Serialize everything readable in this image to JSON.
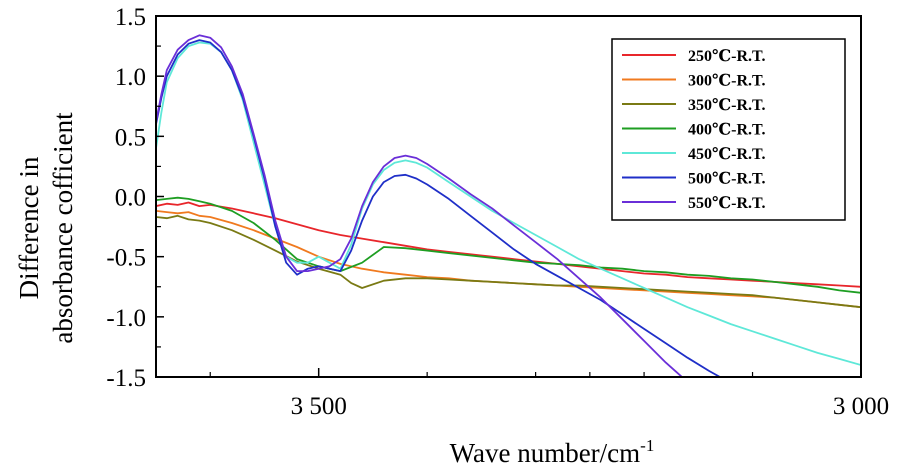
{
  "chart_data": {
    "type": "line",
    "xlabel": "Wave number/cm",
    "xlabel_sup": "-1",
    "ylabel_line1": "Difference in",
    "ylabel_line2": "absorbance cofficient",
    "xlim": [
      3650,
      3000
    ],
    "ylim": [
      -1.5,
      1.5
    ],
    "x_ticks": [
      3500,
      3000
    ],
    "x_tick_labels": [
      "3 500",
      "3 000"
    ],
    "x_minor_ticks": [
      3600,
      3400,
      3300,
      3250,
      3200,
      3100
    ],
    "y_ticks": [
      1.5,
      1.0,
      0.5,
      0.0,
      -0.5,
      -1.0,
      -1.5
    ],
    "y_tick_labels": [
      "1.5",
      "1.0",
      "0.5",
      "0.0",
      "-0.5",
      "-1.0",
      "-1.5"
    ],
    "grid": false,
    "legend_position": "top-right",
    "series": [
      {
        "name": "250℃-R.T.",
        "color": "#e8262b",
        "x": [
          3650,
          3640,
          3630,
          3620,
          3610,
          3600,
          3580,
          3560,
          3540,
          3520,
          3500,
          3480,
          3460,
          3440,
          3420,
          3400,
          3380,
          3360,
          3340,
          3320,
          3300,
          3280,
          3260,
          3240,
          3220,
          3200,
          3180,
          3160,
          3140,
          3120,
          3100,
          3080,
          3060,
          3040,
          3020,
          3000
        ],
        "y": [
          -0.08,
          -0.06,
          -0.07,
          -0.05,
          -0.08,
          -0.07,
          -0.1,
          -0.14,
          -0.18,
          -0.23,
          -0.28,
          -0.32,
          -0.35,
          -0.38,
          -0.41,
          -0.44,
          -0.46,
          -0.48,
          -0.5,
          -0.52,
          -0.54,
          -0.56,
          -0.58,
          -0.6,
          -0.62,
          -0.64,
          -0.65,
          -0.67,
          -0.68,
          -0.69,
          -0.7,
          -0.71,
          -0.72,
          -0.73,
          -0.74,
          -0.75
        ]
      },
      {
        "name": "300℃-R.T.",
        "color": "#f07a1f",
        "x": [
          3650,
          3640,
          3630,
          3620,
          3610,
          3600,
          3580,
          3560,
          3540,
          3520,
          3500,
          3480,
          3460,
          3440,
          3420,
          3400,
          3380,
          3360,
          3340,
          3320,
          3300,
          3280,
          3260,
          3240,
          3220,
          3200,
          3180,
          3160,
          3140,
          3120,
          3100,
          3080,
          3060,
          3040,
          3020,
          3000
        ],
        "y": [
          -0.12,
          -0.13,
          -0.14,
          -0.13,
          -0.16,
          -0.17,
          -0.22,
          -0.28,
          -0.35,
          -0.42,
          -0.5,
          -0.56,
          -0.6,
          -0.63,
          -0.65,
          -0.67,
          -0.68,
          -0.7,
          -0.71,
          -0.72,
          -0.73,
          -0.74,
          -0.75,
          -0.76,
          -0.77,
          -0.78,
          -0.79,
          -0.8,
          -0.81,
          -0.82,
          -0.83,
          -0.84,
          -0.86,
          -0.88,
          -0.9,
          -0.92
        ]
      },
      {
        "name": "350℃-R.T.",
        "color": "#7a7a14",
        "x": [
          3650,
          3640,
          3630,
          3620,
          3610,
          3600,
          3580,
          3560,
          3540,
          3520,
          3500,
          3480,
          3470,
          3460,
          3440,
          3420,
          3400,
          3380,
          3360,
          3340,
          3320,
          3300,
          3280,
          3260,
          3240,
          3220,
          3200,
          3180,
          3160,
          3140,
          3120,
          3100,
          3080,
          3060,
          3040,
          3020,
          3000
        ],
        "y": [
          -0.17,
          -0.18,
          -0.16,
          -0.19,
          -0.2,
          -0.22,
          -0.28,
          -0.36,
          -0.45,
          -0.54,
          -0.6,
          -0.65,
          -0.72,
          -0.76,
          -0.7,
          -0.68,
          -0.68,
          -0.69,
          -0.7,
          -0.71,
          -0.72,
          -0.73,
          -0.74,
          -0.74,
          -0.75,
          -0.76,
          -0.77,
          -0.78,
          -0.79,
          -0.8,
          -0.81,
          -0.82,
          -0.84,
          -0.86,
          -0.88,
          -0.9,
          -0.92
        ]
      },
      {
        "name": "400℃-R.T.",
        "color": "#1e9e22",
        "x": [
          3650,
          3640,
          3630,
          3620,
          3610,
          3600,
          3580,
          3560,
          3540,
          3520,
          3500,
          3490,
          3480,
          3460,
          3440,
          3420,
          3400,
          3380,
          3360,
          3340,
          3320,
          3300,
          3280,
          3260,
          3240,
          3220,
          3200,
          3180,
          3160,
          3140,
          3120,
          3100,
          3080,
          3060,
          3040,
          3020,
          3000
        ],
        "y": [
          -0.03,
          -0.02,
          -0.01,
          -0.02,
          -0.04,
          -0.06,
          -0.12,
          -0.22,
          -0.36,
          -0.52,
          -0.58,
          -0.6,
          -0.62,
          -0.55,
          -0.42,
          -0.43,
          -0.45,
          -0.47,
          -0.49,
          -0.51,
          -0.53,
          -0.55,
          -0.56,
          -0.57,
          -0.59,
          -0.6,
          -0.62,
          -0.63,
          -0.65,
          -0.66,
          -0.68,
          -0.69,
          -0.71,
          -0.73,
          -0.75,
          -0.78,
          -0.8
        ]
      },
      {
        "name": "450℃-R.T.",
        "color": "#5ee8d8",
        "x": [
          3650,
          3645,
          3640,
          3630,
          3620,
          3610,
          3600,
          3590,
          3580,
          3570,
          3560,
          3550,
          3540,
          3530,
          3520,
          3510,
          3500,
          3490,
          3480,
          3470,
          3460,
          3450,
          3440,
          3430,
          3420,
          3410,
          3400,
          3380,
          3360,
          3340,
          3320,
          3300,
          3280,
          3260,
          3240,
          3220,
          3200,
          3180,
          3160,
          3140,
          3120,
          3100,
          3080,
          3060,
          3040,
          3020,
          3000
        ],
        "y": [
          0.4,
          0.7,
          0.95,
          1.15,
          1.25,
          1.28,
          1.27,
          1.2,
          1.05,
          0.8,
          0.45,
          0.1,
          -0.25,
          -0.5,
          -0.55,
          -0.55,
          -0.5,
          -0.55,
          -0.6,
          -0.4,
          -0.1,
          0.1,
          0.22,
          0.28,
          0.3,
          0.28,
          0.24,
          0.12,
          0.0,
          -0.12,
          -0.22,
          -0.32,
          -0.42,
          -0.52,
          -0.6,
          -0.68,
          -0.76,
          -0.84,
          -0.92,
          -0.99,
          -1.06,
          -1.12,
          -1.18,
          -1.24,
          -1.3,
          -1.35,
          -1.4
        ]
      },
      {
        "name": "500℃-R.T.",
        "color": "#1f2fc8",
        "x": [
          3650,
          3645,
          3640,
          3630,
          3620,
          3610,
          3600,
          3590,
          3580,
          3570,
          3560,
          3550,
          3540,
          3530,
          3520,
          3510,
          3500,
          3490,
          3480,
          3470,
          3460,
          3450,
          3440,
          3430,
          3420,
          3410,
          3400,
          3380,
          3360,
          3340,
          3320,
          3300,
          3280,
          3260,
          3240,
          3220,
          3200,
          3180,
          3160,
          3140,
          3130
        ],
        "y": [
          0.6,
          0.82,
          1.0,
          1.18,
          1.27,
          1.3,
          1.28,
          1.2,
          1.05,
          0.82,
          0.5,
          0.15,
          -0.25,
          -0.55,
          -0.65,
          -0.6,
          -0.58,
          -0.6,
          -0.62,
          -0.45,
          -0.2,
          0.0,
          0.12,
          0.17,
          0.18,
          0.15,
          0.1,
          -0.02,
          -0.16,
          -0.3,
          -0.44,
          -0.56,
          -0.66,
          -0.76,
          -0.86,
          -0.98,
          -1.1,
          -1.22,
          -1.34,
          -1.45,
          -1.5
        ]
      },
      {
        "name": "550℃-R.T.",
        "color": "#6a2fd8",
        "x": [
          3650,
          3645,
          3640,
          3630,
          3620,
          3610,
          3600,
          3590,
          3580,
          3570,
          3560,
          3550,
          3540,
          3530,
          3520,
          3510,
          3500,
          3490,
          3480,
          3470,
          3460,
          3450,
          3440,
          3430,
          3420,
          3410,
          3400,
          3380,
          3360,
          3340,
          3320,
          3300,
          3280,
          3260,
          3240,
          3220,
          3200,
          3180,
          3170,
          3165
        ],
        "y": [
          0.62,
          0.85,
          1.05,
          1.22,
          1.3,
          1.34,
          1.32,
          1.24,
          1.08,
          0.85,
          0.52,
          0.18,
          -0.2,
          -0.5,
          -0.62,
          -0.62,
          -0.6,
          -0.58,
          -0.52,
          -0.35,
          -0.08,
          0.12,
          0.25,
          0.32,
          0.34,
          0.32,
          0.27,
          0.15,
          0.02,
          -0.1,
          -0.24,
          -0.38,
          -0.52,
          -0.68,
          -0.84,
          -1.02,
          -1.2,
          -1.38,
          -1.46,
          -1.5
        ]
      }
    ]
  }
}
